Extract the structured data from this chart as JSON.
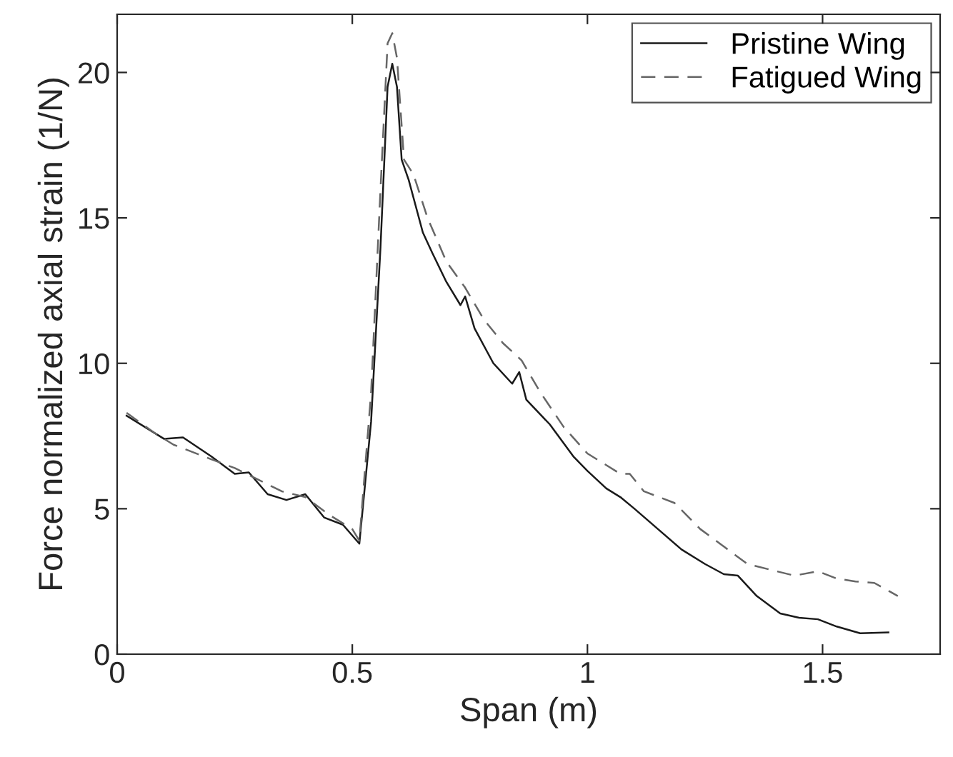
{
  "chart_data": {
    "type": "line",
    "xlabel": "Span (m)",
    "ylabel": "Force normalized axial strain (1/N)",
    "xlim": [
      0,
      1.75
    ],
    "ylim": [
      0,
      22
    ],
    "xticks": [
      0,
      0.5,
      1,
      1.5
    ],
    "yticks": [
      0,
      5,
      10,
      15,
      20
    ],
    "grid": false,
    "legend": "top right",
    "marker": "none",
    "series": [
      {
        "name": "Pristine Wing",
        "color": "#1a1a1a",
        "line_style": "solid",
        "x": [
          0.02,
          0.06,
          0.1,
          0.14,
          0.2,
          0.25,
          0.28,
          0.32,
          0.36,
          0.4,
          0.44,
          0.48,
          0.515,
          0.54,
          0.56,
          0.575,
          0.585,
          0.595,
          0.605,
          0.62,
          0.65,
          0.67,
          0.7,
          0.73,
          0.74,
          0.76,
          0.8,
          0.84,
          0.855,
          0.87,
          0.92,
          0.97,
          1.0,
          1.04,
          1.07,
          1.1,
          1.15,
          1.2,
          1.25,
          1.29,
          1.32,
          1.36,
          1.41,
          1.45,
          1.49,
          1.53,
          1.58,
          1.64
        ],
        "values": [
          8.2,
          7.8,
          7.4,
          7.45,
          6.8,
          6.2,
          6.25,
          5.5,
          5.3,
          5.5,
          4.7,
          4.45,
          3.8,
          8,
          14,
          19.5,
          20.3,
          19.5,
          17,
          16.3,
          14.5,
          13.8,
          12.8,
          12.0,
          12.3,
          11.2,
          10,
          9.3,
          9.7,
          8.75,
          7.9,
          6.8,
          6.3,
          5.7,
          5.4,
          5.0,
          4.3,
          3.6,
          3.1,
          2.75,
          2.7,
          2.0,
          1.4,
          1.25,
          1.2,
          0.95,
          0.72,
          0.75
        ]
      },
      {
        "name": "Fatigued Wing",
        "color": "#666666",
        "line_style": "dashed",
        "x": [
          0.02,
          0.08,
          0.12,
          0.2,
          0.25,
          0.3,
          0.35,
          0.4,
          0.45,
          0.5,
          0.515,
          0.54,
          0.56,
          0.575,
          0.585,
          0.595,
          0.61,
          0.63,
          0.66,
          0.7,
          0.74,
          0.78,
          0.82,
          0.86,
          0.9,
          0.95,
          1.0,
          1.04,
          1.07,
          1.09,
          1.12,
          1.185,
          1.24,
          1.29,
          1.34,
          1.39,
          1.44,
          1.49,
          1.53,
          1.57,
          1.61,
          1.66
        ],
        "values": [
          8.3,
          7.6,
          7.2,
          6.7,
          6.4,
          6.0,
          5.6,
          5.4,
          4.8,
          4.3,
          3.9,
          9,
          16,
          21,
          21.35,
          20.5,
          17,
          16.5,
          15,
          13.5,
          12.6,
          11.5,
          10.7,
          10.1,
          9.0,
          7.8,
          6.9,
          6.5,
          6.2,
          6.2,
          5.6,
          5.2,
          4.3,
          3.7,
          3.1,
          2.9,
          2.7,
          2.85,
          2.6,
          2.5,
          2.45,
          2.0
        ]
      }
    ]
  }
}
